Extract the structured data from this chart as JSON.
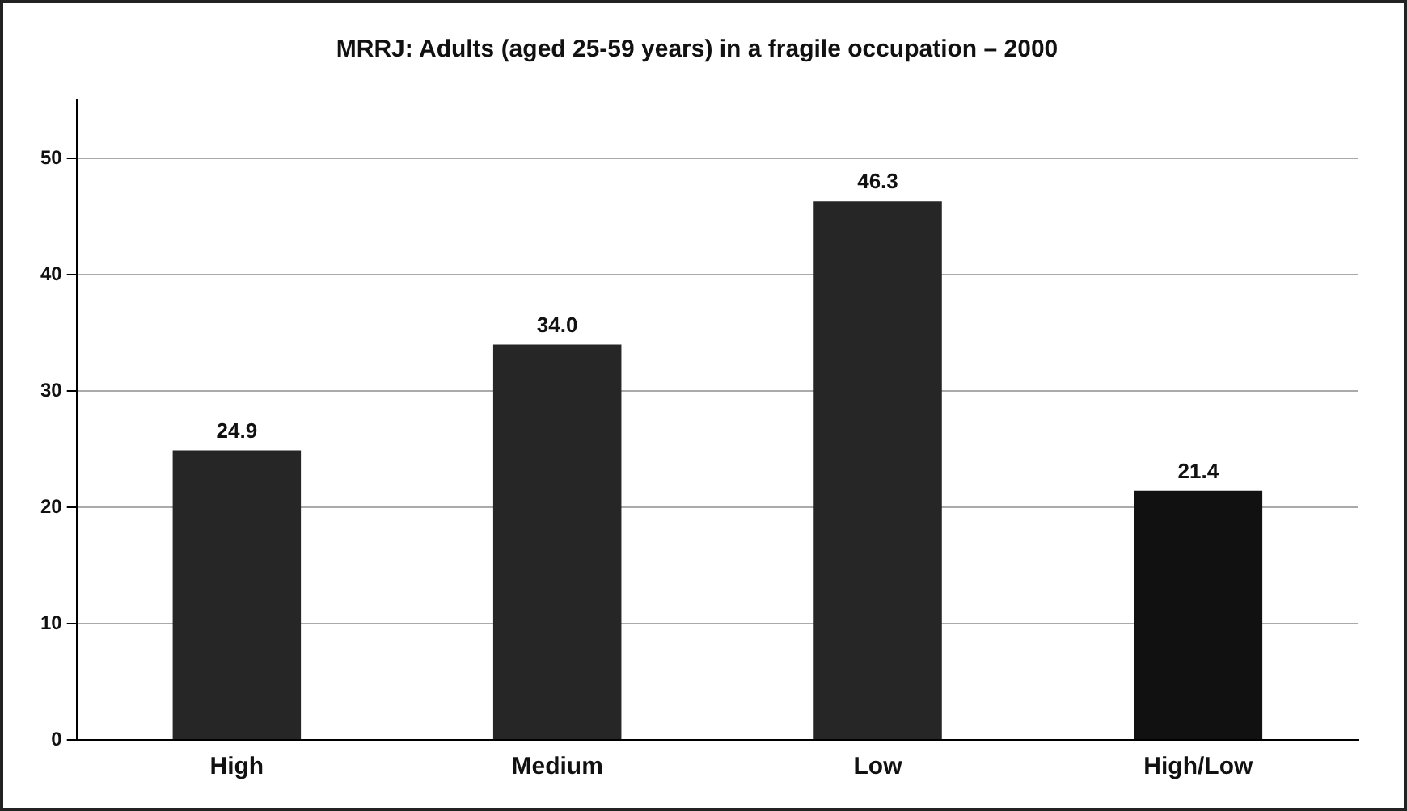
{
  "chart_data": {
    "type": "bar",
    "title": "MRRJ: Adults (aged 25-59 years) in a fragile occupation – 2000",
    "categories": [
      "High",
      "Medium",
      "Low",
      "High/Low"
    ],
    "values": [
      24.9,
      34.0,
      46.3,
      21.4
    ],
    "colors": [
      "#262626",
      "#262626",
      "#262626",
      "#111111"
    ],
    "value_labels": [
      "24.9",
      "34.0",
      "46.3",
      "21.4"
    ],
    "ylim": [
      0,
      55
    ],
    "yticks": [
      0,
      10,
      20,
      30,
      40,
      50
    ],
    "grid": "y",
    "legend": false
  }
}
